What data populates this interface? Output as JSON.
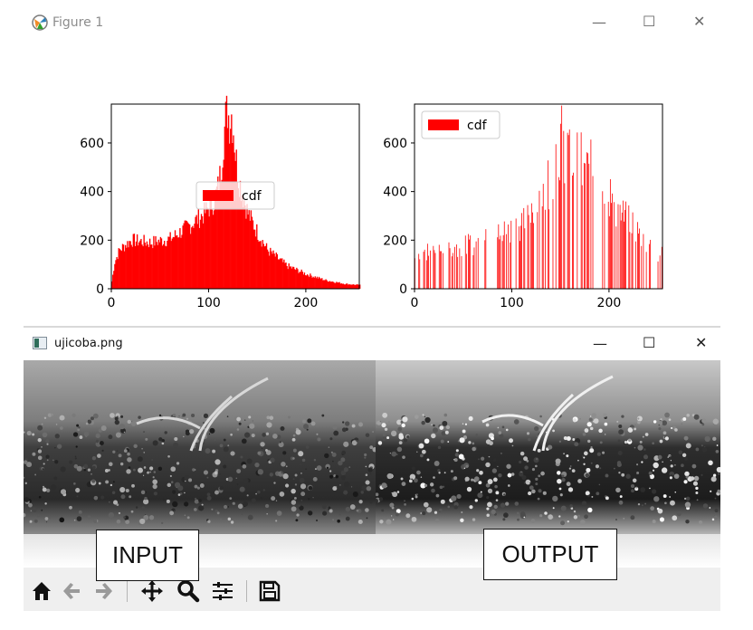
{
  "window1": {
    "title": "Figure 1",
    "controls": [
      "—",
      "☐",
      "✕"
    ]
  },
  "window2": {
    "title": "ujicoba.png",
    "controls": [
      "—",
      "☐",
      "✕"
    ]
  },
  "labels": {
    "input": "INPUT",
    "output": "OUTPUT"
  },
  "toolbar": {
    "buttons": [
      "home-icon",
      "back-icon",
      "forward-icon",
      "pan-icon",
      "zoom-icon",
      "subplots-icon",
      "save-icon"
    ]
  },
  "colors": {
    "bar": "#ff0000",
    "axis": "#000000",
    "toolbar_bg": "#efefef"
  },
  "chart_data": [
    {
      "type": "bar",
      "legend": {
        "label": "cdf",
        "placement": "center"
      },
      "xlim": [
        0,
        255
      ],
      "ylim": [
        0,
        760
      ],
      "xticks": [
        0,
        100,
        200
      ],
      "yticks": [
        0,
        200,
        400,
        600
      ],
      "x_anchor": [
        0,
        3,
        8,
        20,
        40,
        60,
        80,
        95,
        105,
        110,
        113,
        115,
        117,
        119,
        121,
        123,
        125,
        127,
        130,
        135,
        140,
        150,
        160,
        180,
        200,
        220,
        240,
        255
      ],
      "y_anchor": [
        30,
        110,
        160,
        200,
        190,
        205,
        260,
        310,
        360,
        430,
        520,
        620,
        700,
        740,
        690,
        720,
        660,
        560,
        460,
        380,
        310,
        230,
        160,
        95,
        60,
        35,
        20,
        15
      ]
    },
    {
      "type": "bar",
      "legend": {
        "label": "cdf",
        "placement": "upper left"
      },
      "xlim": [
        0,
        255
      ],
      "ylim": [
        0,
        760
      ],
      "xticks": [
        0,
        100,
        200
      ],
      "yticks": [
        0,
        200,
        400,
        600
      ],
      "x_anchor": [
        0,
        20,
        40,
        60,
        80,
        100,
        110,
        120,
        130,
        140,
        145,
        150,
        155,
        160,
        170,
        180,
        190,
        200,
        210,
        220,
        230,
        240,
        255
      ],
      "y_anchor": [
        160,
        190,
        200,
        220,
        250,
        300,
        330,
        410,
        470,
        560,
        680,
        740,
        710,
        640,
        620,
        590,
        560,
        470,
        380,
        330,
        280,
        220,
        170
      ]
    }
  ]
}
